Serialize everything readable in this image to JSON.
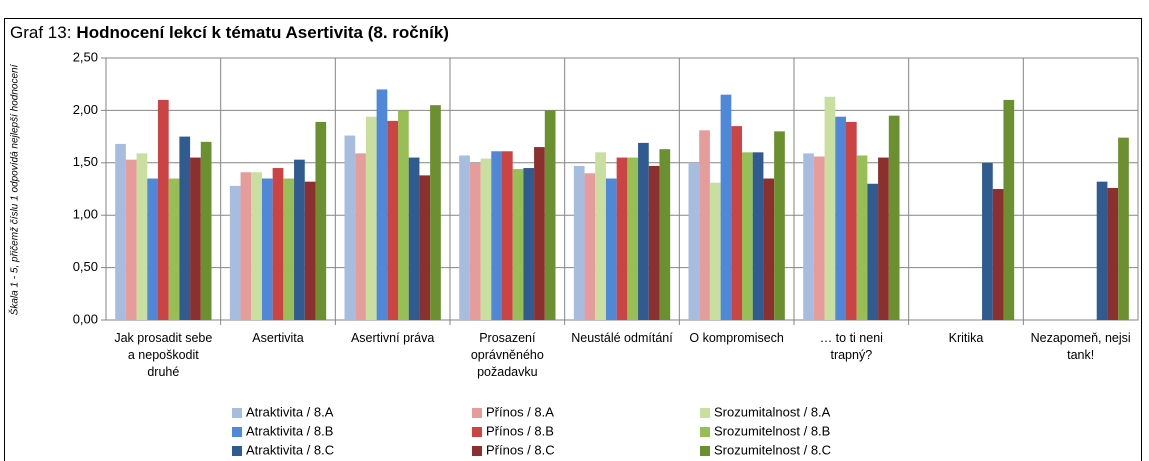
{
  "chart_data": {
    "type": "bar",
    "title_prefix": "Graf 13:",
    "title": "Hodnocení lekcí k tématu Asertivita (8. ročník)",
    "y_label": "Škala 1 - 5, přičemž číslu 1 odpovídá nejlepší hodnocení",
    "categories": [
      "Jak prosadit sebe a nepoškodit druhé",
      "Asertivita",
      "Asertivní práva",
      "Prosazení oprávněného požadavku",
      "Neustálé odmítání",
      "O kompromisech",
      "… to ti neni trapný?",
      "Kritika",
      "Nezapomeň, nejsi tank!"
    ],
    "ylim": [
      0,
      2.5
    ],
    "yticks": [
      {
        "value": 0,
        "label": "0,00"
      },
      {
        "value": 0.5,
        "label": "0,50"
      },
      {
        "value": 1,
        "label": "1,00"
      },
      {
        "value": 1.5,
        "label": "1,50"
      },
      {
        "value": 2,
        "label": "2,00"
      },
      {
        "value": 2.5,
        "label": "2,50"
      }
    ],
    "grid": true,
    "legend": "bottom",
    "series": [
      {
        "name": "Atraktivita / 8.A",
        "color": "#a7bde0",
        "values": [
          1.68,
          1.28,
          1.76,
          1.57,
          1.47,
          1.5,
          1.59,
          null,
          null
        ]
      },
      {
        "name": "Přínos / 8.A",
        "color": "#e59c9b",
        "values": [
          1.53,
          1.41,
          1.59,
          1.5,
          1.4,
          1.81,
          1.56,
          null,
          null
        ]
      },
      {
        "name": "Srozumitalnost / 8.A",
        "color": "#c8dfa0",
        "values": [
          1.59,
          1.41,
          1.94,
          1.54,
          1.6,
          1.31,
          2.13,
          null,
          null
        ]
      },
      {
        "name": "Atraktivita / 8.B",
        "color": "#4f88d8",
        "values": [
          1.35,
          1.35,
          2.2,
          1.61,
          1.35,
          2.15,
          1.94,
          null,
          null
        ]
      },
      {
        "name": "Přínos / 8.B",
        "color": "#cb4343",
        "values": [
          2.1,
          1.45,
          1.9,
          1.61,
          1.55,
          1.85,
          1.89,
          null,
          null
        ]
      },
      {
        "name": "Srozumitelnost / 8.B",
        "color": "#97bf55",
        "values": [
          1.35,
          1.35,
          2.0,
          1.44,
          1.55,
          1.6,
          1.57,
          null,
          null
        ]
      },
      {
        "name": "Atraktivita / 8.C",
        "color": "#2f5b91",
        "values": [
          1.75,
          1.53,
          1.55,
          1.45,
          1.69,
          1.6,
          1.3,
          1.5,
          1.32
        ]
      },
      {
        "name": "Přínos / 8.C",
        "color": "#8c2f2f",
        "values": [
          1.55,
          1.32,
          1.38,
          1.65,
          1.47,
          1.35,
          1.55,
          1.25,
          1.26
        ]
      },
      {
        "name": "Srozumitelnost / 8.C",
        "color": "#6b9030",
        "values": [
          1.7,
          1.89,
          2.05,
          2.0,
          1.63,
          1.8,
          1.95,
          2.1,
          1.74
        ]
      }
    ]
  }
}
